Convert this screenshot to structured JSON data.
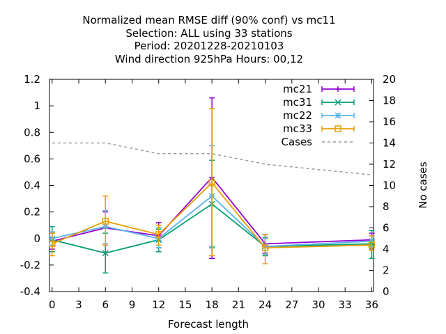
{
  "chart_data": {
    "type": "line",
    "title_lines": [
      "Normalized mean RMSE diff (90% conf) vs mc11",
      "Selection: ALL using    33 stations",
      "Period: 20201228-20210103",
      "Wind direction 925hPa   Hours:  00,12"
    ],
    "xlabel": "Forecast length",
    "ylabel": "",
    "y2label": "No cases",
    "xlim": [
      -0.3,
      36.2
    ],
    "ylim": [
      -0.4,
      1.2
    ],
    "y2lim": [
      0,
      20
    ],
    "xticks": [
      "0",
      "3",
      "6",
      "9",
      "12",
      "15",
      "18",
      "21",
      "24",
      "27",
      "30",
      "33",
      "36"
    ],
    "yticks": [
      "-0.4",
      "-0.2",
      "0",
      "0.2",
      "0.4",
      "0.6",
      "0.8",
      "1",
      "1.2"
    ],
    "y2ticks": [
      "0",
      "2",
      "4",
      "6",
      "8",
      "10",
      "12",
      "14",
      "16",
      "18",
      "20"
    ],
    "legend_position": "top-right",
    "series": [
      {
        "name": "mc21",
        "color": "#9400d3",
        "marker": "plus",
        "x": [
          0,
          6,
          12,
          18,
          24,
          36
        ],
        "y": [
          -0.02,
          0.08,
          0.02,
          0.46,
          -0.04,
          -0.01
        ],
        "err_low": [
          -0.08,
          -0.05,
          -0.07,
          -0.15,
          -0.11,
          -0.07
        ],
        "err_high": [
          0.04,
          0.2,
          0.12,
          1.06,
          0.03,
          0.04
        ]
      },
      {
        "name": "mc31",
        "color": "#009e73",
        "marker": "cross",
        "x": [
          0,
          6,
          12,
          18,
          24,
          36
        ],
        "y": [
          -0.01,
          -0.11,
          -0.01,
          0.26,
          -0.06,
          -0.04
        ],
        "err_low": [
          -0.1,
          -0.26,
          -0.1,
          -0.07,
          -0.13,
          -0.15
        ],
        "err_high": [
          0.09,
          0.04,
          0.07,
          0.59,
          0.01,
          0.06
        ]
      },
      {
        "name": "mc22",
        "color": "#56b4e9",
        "marker": "asterisk",
        "x": [
          0,
          6,
          12,
          18,
          24,
          36
        ],
        "y": [
          0.0,
          0.09,
          0.0,
          0.32,
          -0.06,
          -0.02
        ],
        "err_low": [
          -0.05,
          -0.04,
          -0.07,
          -0.06,
          -0.12,
          -0.06
        ],
        "err_high": [
          0.05,
          0.21,
          0.08,
          0.7,
          0.0,
          0.02
        ]
      },
      {
        "name": "mc33",
        "color": "#e69f00",
        "marker": "square",
        "x": [
          0,
          6,
          12,
          18,
          24,
          36
        ],
        "y": [
          -0.04,
          0.13,
          0.03,
          0.42,
          -0.07,
          -0.05
        ],
        "err_low": [
          -0.13,
          -0.05,
          -0.05,
          -0.13,
          -0.19,
          -0.09
        ],
        "err_high": [
          0.04,
          0.32,
          0.1,
          0.98,
          0.03,
          0.02
        ]
      },
      {
        "name": "Cases",
        "color": "#999999",
        "dashed": true,
        "axis": "y2",
        "x": [
          0,
          6,
          12,
          18,
          24,
          36
        ],
        "y": [
          14,
          14,
          13,
          13,
          12,
          11
        ]
      }
    ]
  }
}
